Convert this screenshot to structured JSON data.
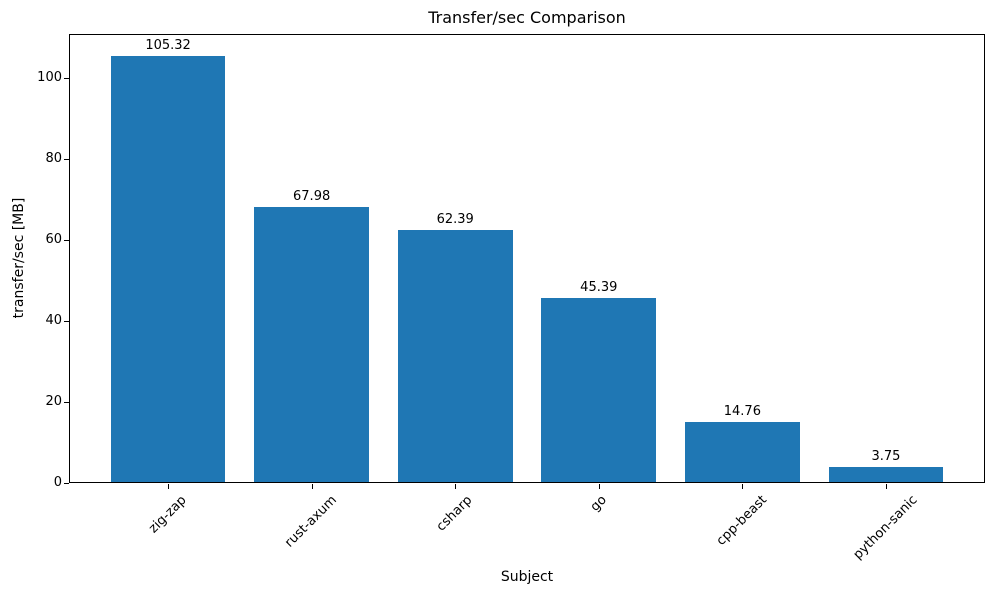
{
  "chart_data": {
    "type": "bar",
    "title": "Transfer/sec Comparison",
    "xlabel": "Subject",
    "ylabel": "transfer/sec [MB]",
    "categories": [
      "zig-zap",
      "rust-axum",
      "csharp",
      "go",
      "cpp-beast",
      "python-sanic"
    ],
    "values": [
      105.32,
      67.98,
      62.39,
      45.39,
      14.76,
      3.75
    ],
    "bar_labels": [
      "105.32",
      "67.98",
      "62.39",
      "45.39",
      "14.76",
      "3.75"
    ],
    "bar_color": "#1f77b4",
    "text_color": "#000000",
    "background_color": "#ffffff",
    "ylim": [
      0,
      111
    ],
    "yticks": [
      0,
      20,
      40,
      60,
      80,
      100
    ],
    "xtick_rotation_deg": 45,
    "grid": false,
    "legend": false
  }
}
